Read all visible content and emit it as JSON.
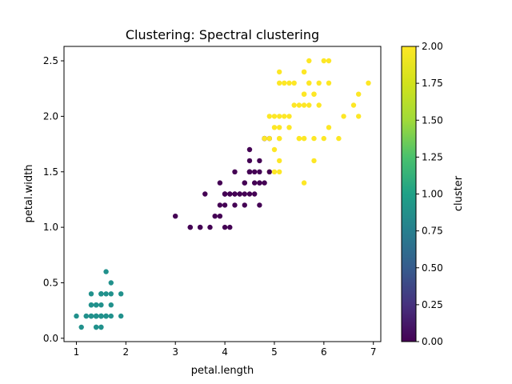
{
  "chart_data": {
    "type": "scatter",
    "title": "Clustering: Spectral clustering",
    "xlabel": "petal.length",
    "ylabel": "petal.width",
    "xlim": [
      0.75,
      7.15
    ],
    "ylim": [
      -0.03,
      2.63
    ],
    "xticks": [
      1,
      2,
      3,
      4,
      5,
      6,
      7
    ],
    "yticks": [
      0.0,
      0.5,
      1.0,
      1.5,
      2.0,
      2.5
    ],
    "colorbar": {
      "label": "cluster",
      "colormap": "viridis",
      "range": [
        0.0,
        2.0
      ],
      "ticks": [
        "0.00",
        "0.25",
        "0.50",
        "0.75",
        "1.00",
        "1.25",
        "1.50",
        "1.75",
        "2.00"
      ]
    },
    "cluster_colors": {
      "0": "#440154",
      "1": "#21918c",
      "2": "#fde725"
    },
    "points": [
      [
        1.4,
        0.2,
        1
      ],
      [
        1.4,
        0.2,
        1
      ],
      [
        1.3,
        0.2,
        1
      ],
      [
        1.5,
        0.2,
        1
      ],
      [
        1.4,
        0.2,
        1
      ],
      [
        1.7,
        0.4,
        1
      ],
      [
        1.4,
        0.3,
        1
      ],
      [
        1.5,
        0.2,
        1
      ],
      [
        1.4,
        0.2,
        1
      ],
      [
        1.5,
        0.1,
        1
      ],
      [
        1.5,
        0.2,
        1
      ],
      [
        1.6,
        0.2,
        1
      ],
      [
        1.4,
        0.1,
        1
      ],
      [
        1.1,
        0.1,
        1
      ],
      [
        1.2,
        0.2,
        1
      ],
      [
        1.5,
        0.4,
        1
      ],
      [
        1.3,
        0.4,
        1
      ],
      [
        1.4,
        0.3,
        1
      ],
      [
        1.7,
        0.3,
        1
      ],
      [
        1.5,
        0.3,
        1
      ],
      [
        1.7,
        0.2,
        1
      ],
      [
        1.5,
        0.4,
        1
      ],
      [
        1.0,
        0.2,
        1
      ],
      [
        1.7,
        0.5,
        1
      ],
      [
        1.9,
        0.2,
        1
      ],
      [
        1.6,
        0.2,
        1
      ],
      [
        1.6,
        0.4,
        1
      ],
      [
        1.5,
        0.2,
        1
      ],
      [
        1.4,
        0.2,
        1
      ],
      [
        1.6,
        0.2,
        1
      ],
      [
        1.6,
        0.2,
        1
      ],
      [
        1.5,
        0.4,
        1
      ],
      [
        1.5,
        0.1,
        1
      ],
      [
        1.4,
        0.2,
        1
      ],
      [
        1.5,
        0.2,
        1
      ],
      [
        1.2,
        0.2,
        1
      ],
      [
        1.3,
        0.2,
        1
      ],
      [
        1.4,
        0.1,
        1
      ],
      [
        1.3,
        0.2,
        1
      ],
      [
        1.5,
        0.2,
        1
      ],
      [
        1.3,
        0.3,
        1
      ],
      [
        1.3,
        0.3,
        1
      ],
      [
        1.3,
        0.2,
        1
      ],
      [
        1.6,
        0.6,
        1
      ],
      [
        1.9,
        0.4,
        1
      ],
      [
        1.4,
        0.3,
        1
      ],
      [
        1.6,
        0.2,
        1
      ],
      [
        1.4,
        0.2,
        1
      ],
      [
        1.5,
        0.2,
        1
      ],
      [
        1.4,
        0.2,
        1
      ],
      [
        4.7,
        1.4,
        0
      ],
      [
        4.5,
        1.5,
        0
      ],
      [
        4.9,
        1.5,
        2
      ],
      [
        4.0,
        1.3,
        0
      ],
      [
        4.6,
        1.5,
        0
      ],
      [
        4.5,
        1.3,
        0
      ],
      [
        4.7,
        1.6,
        0
      ],
      [
        3.3,
        1.0,
        0
      ],
      [
        4.6,
        1.3,
        0
      ],
      [
        3.9,
        1.4,
        0
      ],
      [
        3.5,
        1.0,
        0
      ],
      [
        4.2,
        1.5,
        0
      ],
      [
        4.0,
        1.0,
        0
      ],
      [
        4.7,
        1.4,
        0
      ],
      [
        3.6,
        1.3,
        0
      ],
      [
        4.4,
        1.4,
        0
      ],
      [
        4.5,
        1.5,
        0
      ],
      [
        4.1,
        1.0,
        0
      ],
      [
        4.5,
        1.5,
        0
      ],
      [
        3.9,
        1.1,
        0
      ],
      [
        4.8,
        1.8,
        0
      ],
      [
        4.0,
        1.3,
        0
      ],
      [
        4.9,
        1.5,
        0
      ],
      [
        4.7,
        1.2,
        0
      ],
      [
        4.3,
        1.3,
        0
      ],
      [
        4.4,
        1.4,
        0
      ],
      [
        4.8,
        1.4,
        0
      ],
      [
        5.0,
        1.7,
        2
      ],
      [
        4.5,
        1.5,
        0
      ],
      [
        3.5,
        1.0,
        0
      ],
      [
        3.8,
        1.1,
        0
      ],
      [
        3.7,
        1.0,
        0
      ],
      [
        3.9,
        1.2,
        0
      ],
      [
        5.1,
        1.6,
        2
      ],
      [
        4.5,
        1.5,
        0
      ],
      [
        4.5,
        1.6,
        0
      ],
      [
        4.7,
        1.5,
        0
      ],
      [
        4.4,
        1.3,
        0
      ],
      [
        4.1,
        1.3,
        0
      ],
      [
        4.0,
        1.3,
        0
      ],
      [
        4.4,
        1.2,
        0
      ],
      [
        4.6,
        1.4,
        0
      ],
      [
        4.0,
        1.2,
        0
      ],
      [
        3.3,
        1.0,
        0
      ],
      [
        4.2,
        1.3,
        0
      ],
      [
        4.2,
        1.2,
        0
      ],
      [
        4.2,
        1.3,
        0
      ],
      [
        4.3,
        1.3,
        0
      ],
      [
        3.0,
        1.1,
        0
      ],
      [
        4.1,
        1.3,
        0
      ],
      [
        4.5,
        1.7,
        0
      ],
      [
        4.8,
        1.8,
        0
      ],
      [
        4.9,
        1.8,
        0
      ],
      [
        5.1,
        1.5,
        2
      ],
      [
        4.8,
        1.8,
        2
      ],
      [
        6.0,
        2.5,
        2
      ],
      [
        5.1,
        1.9,
        2
      ],
      [
        5.9,
        2.1,
        2
      ],
      [
        5.6,
        1.8,
        2
      ],
      [
        5.8,
        2.2,
        2
      ],
      [
        6.6,
        2.1,
        2
      ],
      [
        5.8,
        1.8,
        2
      ],
      [
        6.3,
        1.8,
        2
      ],
      [
        6.1,
        2.5,
        2
      ],
      [
        5.1,
        2.0,
        2
      ],
      [
        5.3,
        1.9,
        2
      ],
      [
        5.5,
        2.1,
        2
      ],
      [
        5.0,
        2.0,
        2
      ],
      [
        5.3,
        2.3,
        2
      ],
      [
        5.5,
        1.8,
        2
      ],
      [
        6.7,
        2.2,
        2
      ],
      [
        6.9,
        2.3,
        2
      ],
      [
        5.7,
        2.3,
        2
      ],
      [
        4.9,
        2.0,
        2
      ],
      [
        6.7,
        2.0,
        2
      ],
      [
        5.7,
        2.1,
        2
      ],
      [
        6.0,
        1.8,
        2
      ],
      [
        5.4,
        2.1,
        2
      ],
      [
        5.6,
        2.4,
        2
      ],
      [
        5.1,
        2.3,
        2
      ],
      [
        5.9,
        2.3,
        2
      ],
      [
        5.7,
        2.5,
        2
      ],
      [
        5.2,
        2.3,
        2
      ],
      [
        5.0,
        1.9,
        2
      ],
      [
        5.2,
        2.0,
        2
      ],
      [
        5.4,
        2.3,
        2
      ],
      [
        5.6,
        1.4,
        2
      ],
      [
        6.1,
        1.9,
        2
      ],
      [
        6.4,
        2.0,
        2
      ],
      [
        5.6,
        2.2,
        2
      ],
      [
        5.5,
        1.8,
        2
      ],
      [
        6.1,
        2.3,
        2
      ],
      [
        5.8,
        1.6,
        2
      ],
      [
        5.1,
        2.4,
        2
      ],
      [
        5.3,
        2.0,
        2
      ],
      [
        5.6,
        2.1,
        2
      ],
      [
        5.1,
        1.8,
        2
      ],
      [
        5.0,
        1.5,
        2
      ],
      [
        4.9,
        1.8,
        2
      ],
      [
        5.1,
        1.8,
        2
      ],
      [
        5.6,
        2.2,
        2
      ],
      [
        5.8,
        2.2,
        2
      ],
      [
        5.6,
        1.8,
        2
      ],
      [
        5.6,
        2.4,
        2
      ],
      [
        5.7,
        2.3,
        2
      ]
    ]
  }
}
